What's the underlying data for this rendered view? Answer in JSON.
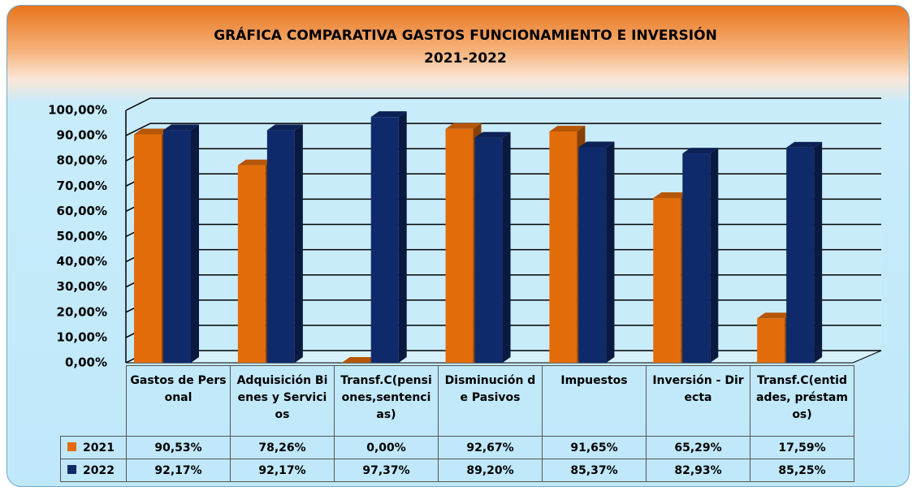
{
  "chart_data": {
    "type": "bar3d",
    "title": "GRÁFICA COMPARATIVA GASTOS FUNCIONAMIENTO E INVERSIÓN",
    "subtitle": "2021-2022",
    "categories": [
      "Gastos de Personal",
      "Adquisición Bienes y Servicios",
      "Transf.C(pensiones,sentencias)",
      "Disminución de Pasivos",
      "Impuestos",
      "Inversión - Directa",
      "Transf.C(entidades, préstamos)"
    ],
    "series": [
      {
        "name": "2021",
        "color": "#e36c0a",
        "values": [
          90.53,
          78.26,
          0,
          92.67,
          91.65,
          65.29,
          17.59
        ],
        "value_labels": [
          "90,53%",
          "78,26%",
          "0,00%",
          "92,67%",
          "91,65%",
          "65,29%",
          "17,59%"
        ]
      },
      {
        "name": "2022",
        "color": "#0f2a6b",
        "values": [
          92.17,
          92.17,
          97.37,
          89.2,
          85.37,
          82.93,
          85.25
        ],
        "value_labels": [
          "92,17%",
          "92,17%",
          "97,37%",
          "89,20%",
          "85,37%",
          "82,93%",
          "85,25%"
        ]
      }
    ],
    "ylim": [
      0,
      100
    ],
    "yticks": [
      {
        "value": 0,
        "label": "0,00%"
      },
      {
        "value": 10,
        "label": "10,00%"
      },
      {
        "value": 20,
        "label": "20,00%"
      },
      {
        "value": 30,
        "label": "30,00%"
      },
      {
        "value": 40,
        "label": "40,00%"
      },
      {
        "value": 50,
        "label": "50,00%"
      },
      {
        "value": 60,
        "label": "60,00%"
      },
      {
        "value": 70,
        "label": "70,00%"
      },
      {
        "value": 80,
        "label": "80,00%"
      },
      {
        "value": 90,
        "label": "90,00%"
      },
      {
        "value": 100,
        "label": "100,00%"
      }
    ],
    "grid": true
  }
}
